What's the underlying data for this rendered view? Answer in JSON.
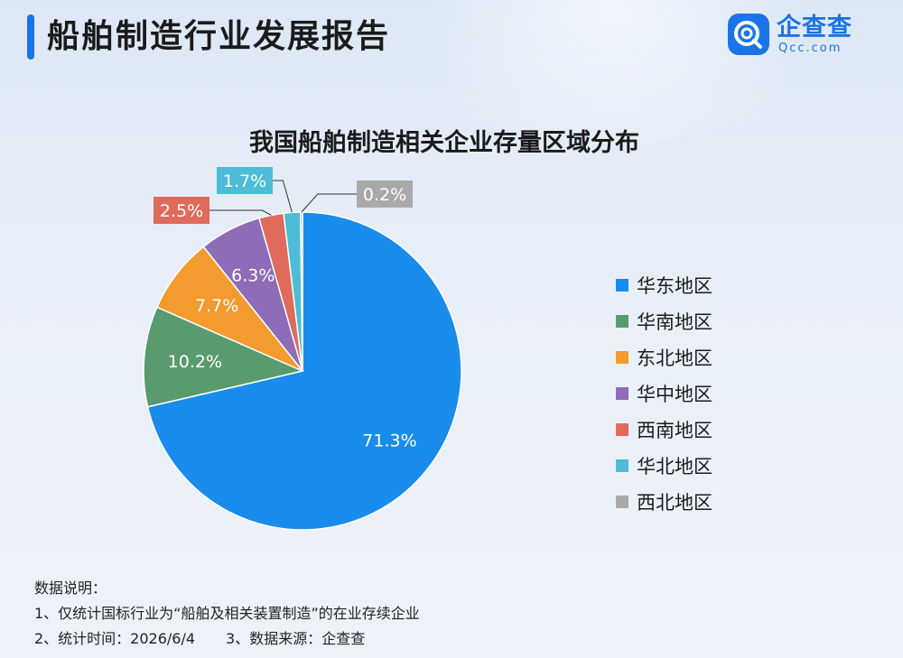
{
  "header": {
    "title": "船舶制造行业发展报告"
  },
  "logo": {
    "name": "企查查",
    "sub": "Qcc.com"
  },
  "colors": {
    "accent": "#1a74e8"
  },
  "chart_data": {
    "type": "pie",
    "title": "我国船舶制造相关企业存量区域分布",
    "legend_position": "right",
    "series": [
      {
        "name": "华东地区",
        "value": 71.3,
        "label": "71.3%",
        "color": "#1a8cec"
      },
      {
        "name": "华南地区",
        "value": 10.2,
        "label": "10.2%",
        "color": "#5a9a6f"
      },
      {
        "name": "东北地区",
        "value": 7.7,
        "label": "7.7%",
        "color": "#f39b2f"
      },
      {
        "name": "华中地区",
        "value": 6.3,
        "label": "6.3%",
        "color": "#8e6cb7"
      },
      {
        "name": "西南地区",
        "value": 2.5,
        "label": "2.5%",
        "color": "#de6b5b"
      },
      {
        "name": "华北地区",
        "value": 1.7,
        "label": "1.7%",
        "color": "#4dbcd6"
      },
      {
        "name": "西北地区",
        "value": 0.2,
        "label": "0.2%",
        "color": "#a9a9a9"
      }
    ]
  },
  "notes": {
    "heading": "数据说明：",
    "line1": "1、仅统计国标行业为“船舶及相关装置制造”的在业存续企业",
    "line2a": "2、统计时间：2026/6/4",
    "line2b": "3、数据来源：企查查"
  }
}
